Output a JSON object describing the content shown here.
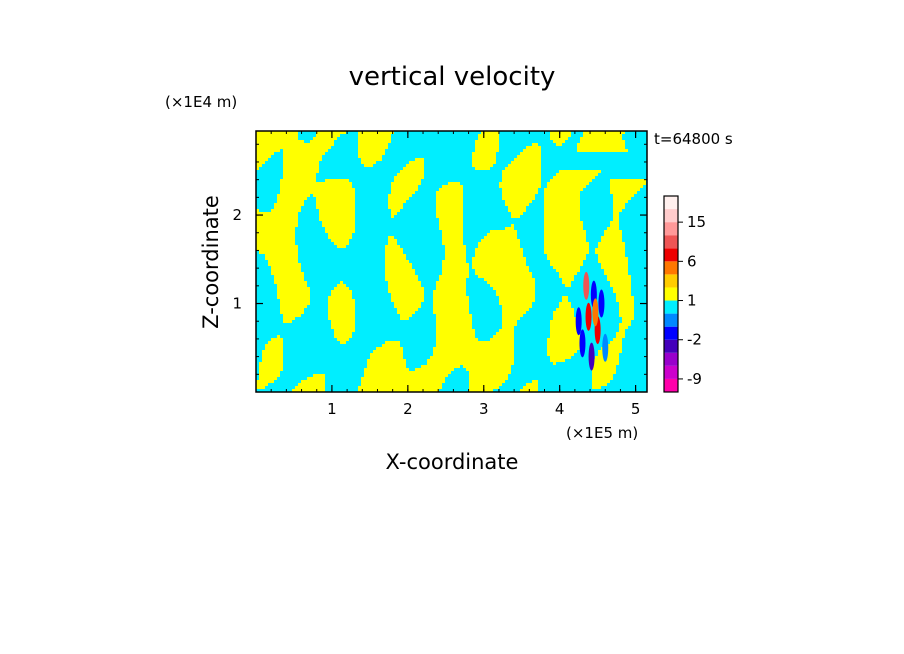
{
  "chart_data": {
    "type": "heatmap",
    "title": "vertical velocity",
    "xlabel": "X-coordinate",
    "ylabel": "Z-coordinate",
    "x_unit": "(×1E5 m)",
    "y_unit": "(×1E4 m)",
    "time_label": "t=64800 s",
    "xlim": [
      0,
      5.15
    ],
    "ylim": [
      0,
      2.95
    ],
    "x_ticks": [
      1,
      2,
      3,
      4,
      5
    ],
    "y_ticks": [
      1,
      2
    ],
    "x_tick_labels": [
      "1",
      "2",
      "3",
      "4",
      "5"
    ],
    "y_tick_labels": [
      "1",
      "2"
    ],
    "fill_colors": {
      "positive": "#ffff00",
      "negative": "#00eeff"
    },
    "colorbar": {
      "levels": [
        -12,
        -9,
        -6,
        -3,
        -2,
        -1,
        0,
        1,
        2,
        3,
        6,
        9,
        12,
        15,
        18,
        21
      ],
      "colors": [
        "#ff00aa",
        "#cc00cc",
        "#9900cc",
        "#4400bb",
        "#0000ff",
        "#0088ff",
        "#00eeff",
        "#ffff00",
        "#ffcc00",
        "#ff7700",
        "#ee0000",
        "#ee5555",
        "#ff9999",
        "#ffcccc",
        "#fff0ee"
      ],
      "tick_labels": [
        "-9",
        "-2",
        "1",
        "6",
        "15"
      ],
      "tick_values": [
        -9,
        -2,
        1,
        6,
        15
      ]
    }
  }
}
